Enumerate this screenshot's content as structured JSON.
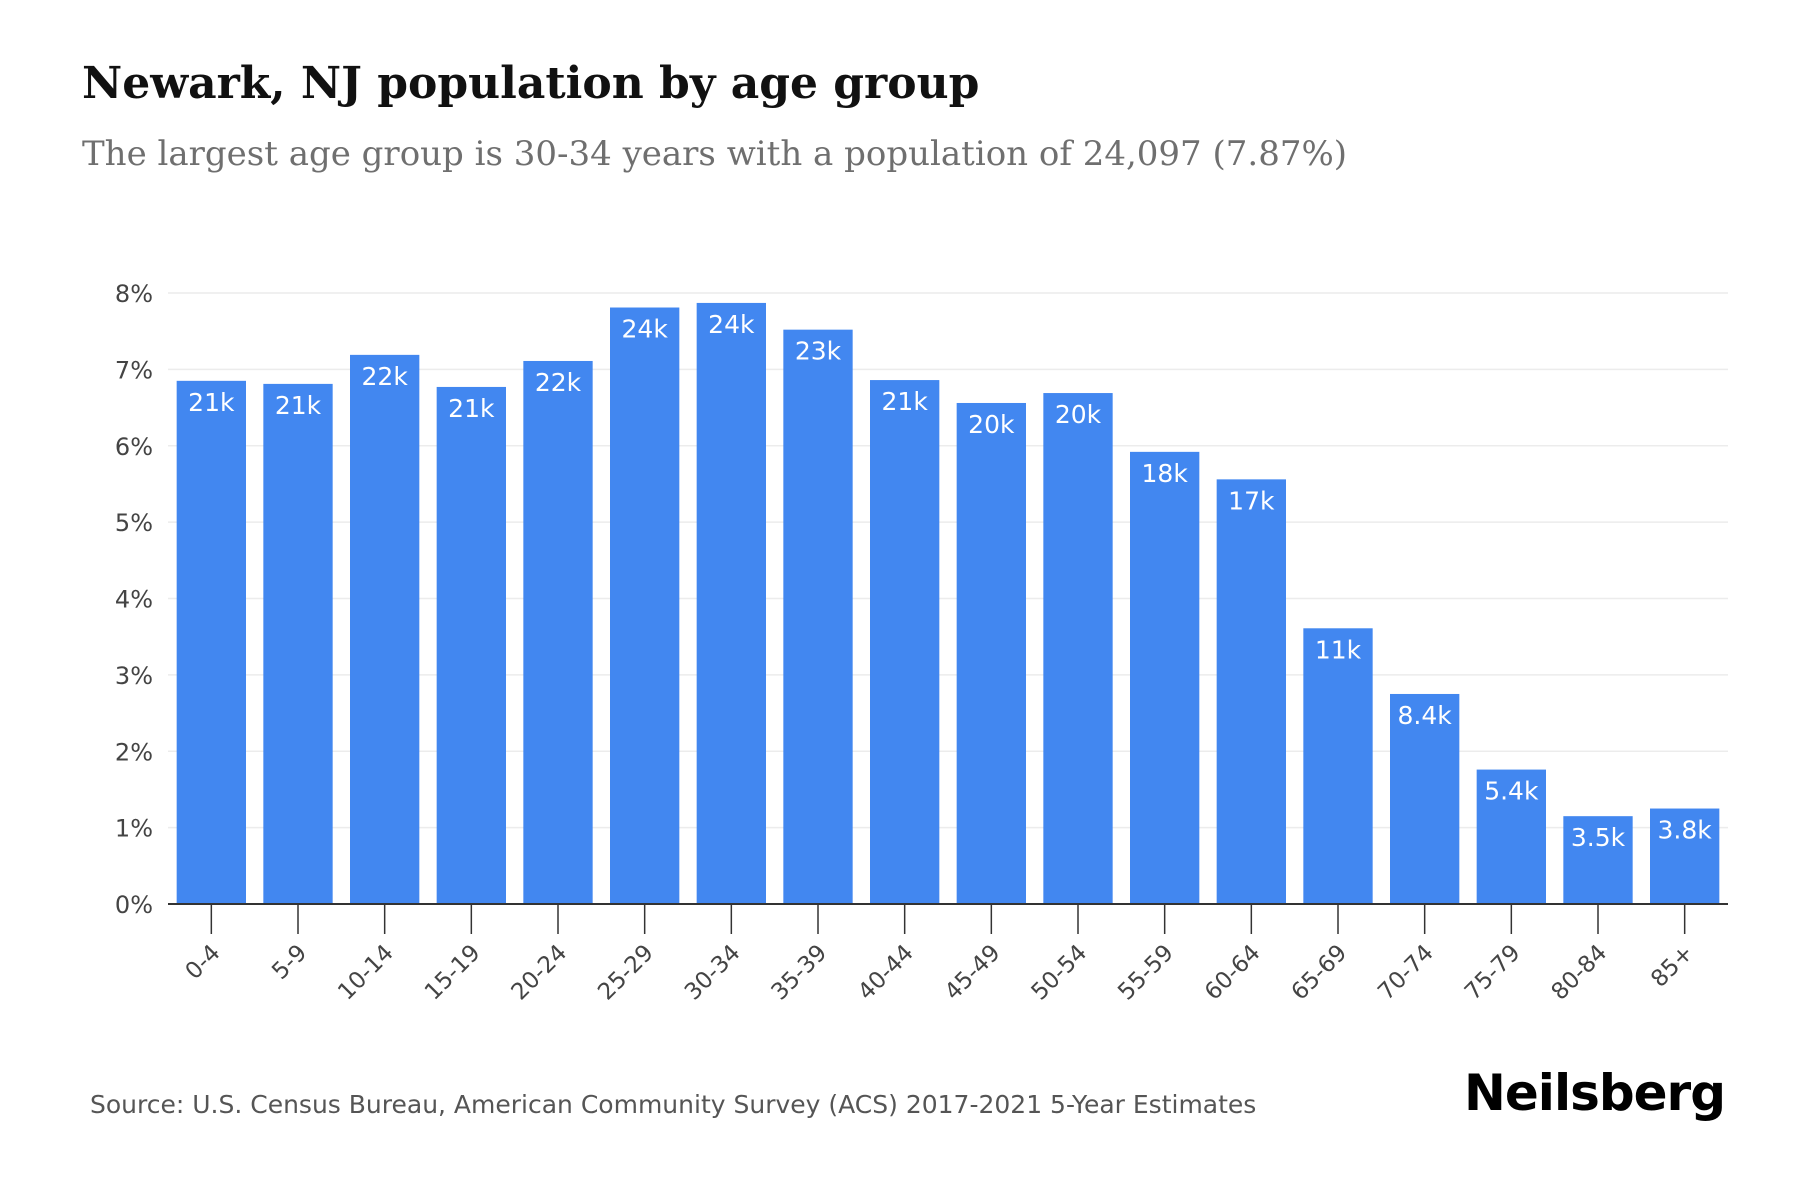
{
  "header": {
    "title": "Newark, NJ population by age group",
    "subtitle": "The largest age group is 30-34 years with a population of 24,097 (7.87%)"
  },
  "footer": {
    "source": "Source: U.S. Census Bureau, American Community Survey (ACS) 2017-2021 5-Year Estimates",
    "brand": "Neilsberg"
  },
  "colors": {
    "bar": "#4287f0",
    "bar_label": "#ffffff",
    "grid": "#ececec",
    "axis": "#333333",
    "tick_text": "#444444"
  },
  "chart_data": {
    "type": "bar",
    "title": "Newark, NJ population by age group",
    "subtitle": "The largest age group is 30-34 years with a population of 24,097 (7.87%)",
    "xlabel": "",
    "ylabel": "",
    "ylim": [
      0,
      8
    ],
    "yticks": [
      0,
      1,
      2,
      3,
      4,
      5,
      6,
      7,
      8
    ],
    "ytick_labels": [
      "0%",
      "1%",
      "2%",
      "3%",
      "4%",
      "5%",
      "6%",
      "7%",
      "8%"
    ],
    "grid": true,
    "categories": [
      "0-4",
      "5-9",
      "10-14",
      "15-19",
      "20-24",
      "25-29",
      "30-34",
      "35-39",
      "40-44",
      "45-49",
      "50-54",
      "55-59",
      "60-64",
      "65-69",
      "70-74",
      "75-79",
      "80-84",
      "85+"
    ],
    "values": [
      6.85,
      6.81,
      7.19,
      6.77,
      7.11,
      7.81,
      7.87,
      7.52,
      6.86,
      6.56,
      6.69,
      5.92,
      5.56,
      3.61,
      2.75,
      1.76,
      1.15,
      1.25
    ],
    "data_labels": [
      "21k",
      "21k",
      "22k",
      "21k",
      "22k",
      "24k",
      "24k",
      "23k",
      "21k",
      "20k",
      "20k",
      "18k",
      "17k",
      "11k",
      "8.4k",
      "5.4k",
      "3.5k",
      "3.8k"
    ]
  }
}
